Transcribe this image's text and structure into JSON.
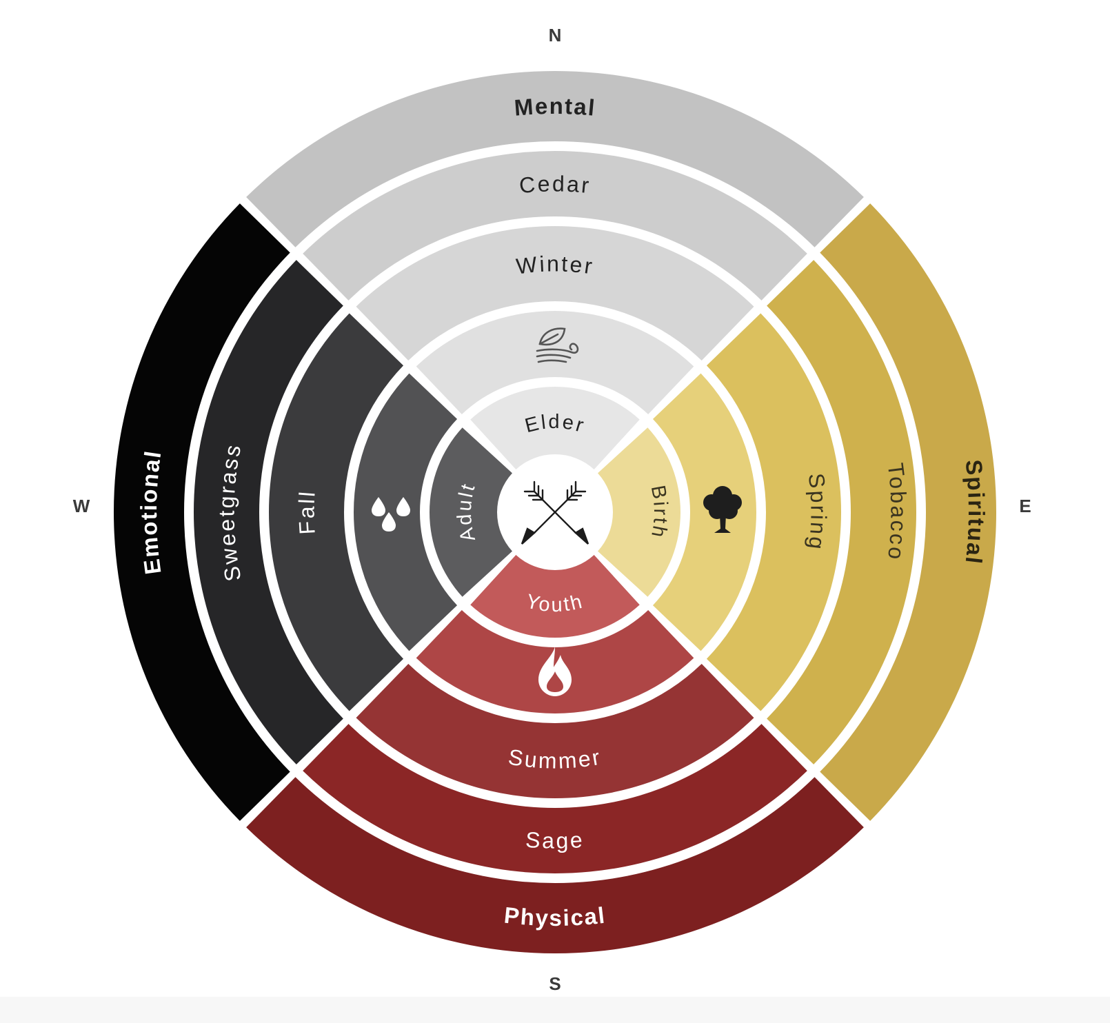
{
  "compass": {
    "north": "N",
    "south": "S",
    "east": "E",
    "west": "W"
  },
  "rings": {
    "aspects": {
      "north": "Mental",
      "east": "Spiritual",
      "south": "Physical",
      "west": "Emotional"
    },
    "medicines": {
      "north": "Cedar",
      "east": "Tobacco",
      "south": "Sage",
      "west": "Sweetgrass"
    },
    "seasons": {
      "north": "Winter",
      "east": "Spring",
      "south": "Summer",
      "west": "Fall"
    },
    "elements": {
      "north": "wind-leaf-icon",
      "east": "tree-icon",
      "south": "fire-icon",
      "west": "water-drops-icon"
    },
    "life_stages": {
      "north": "Elder",
      "east": "Birth",
      "south": "Youth",
      "west": "Adult"
    },
    "center": "crossed-arrows-icon"
  },
  "colors": {
    "background": "#ffffff",
    "compass_text": "#3a3a3a",
    "north": [
      "#c2c2c2",
      "#cdcdcd",
      "#d6d6d6",
      "#e0e0e0",
      "#e6e6e6"
    ],
    "east": [
      "#c9a94a",
      "#cfb14d",
      "#dbc05e",
      "#e6d07a",
      "#ecdb97"
    ],
    "south": [
      "#7d2020",
      "#8b2626",
      "#953434",
      "#ae4646",
      "#c25a5a"
    ],
    "west": [
      "#050505",
      "#262628",
      "#3b3b3d",
      "#525254",
      "#5c5c5e"
    ],
    "north_text": "#222222",
    "dark_text": "#ffffff",
    "east_text": "#3a3420"
  }
}
